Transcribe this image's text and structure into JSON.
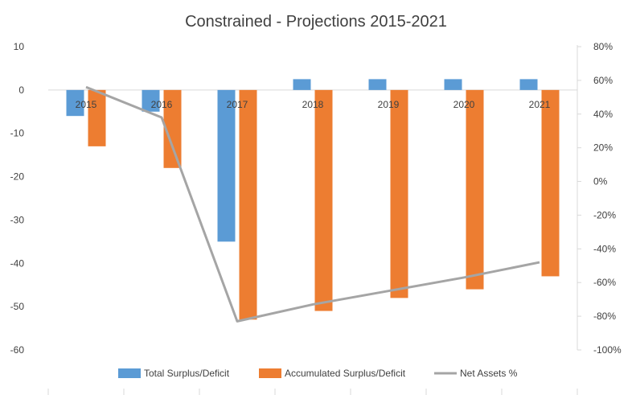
{
  "chart_data": {
    "type": "bar",
    "title": "Constrained - Projections 2015-2021",
    "categories": [
      "2015",
      "2016",
      "2017",
      "2018",
      "2019",
      "2020",
      "2021"
    ],
    "series": [
      {
        "name": "Total Surplus/Deficit",
        "kind": "bar",
        "axis": "left",
        "color": "#5B9BD5",
        "values": [
          -6,
          -5,
          -35,
          2.5,
          2.5,
          2.5,
          2.5
        ]
      },
      {
        "name": "Accumulated Surplus/Deficit",
        "kind": "bar",
        "axis": "left",
        "color": "#ED7D31",
        "values": [
          -13,
          -18,
          -53,
          -51,
          -48,
          -46,
          -43
        ]
      },
      {
        "name": "Net Assets %",
        "kind": "line",
        "axis": "right",
        "color": "#A5A5A5",
        "values": [
          0.56,
          0.38,
          -0.83,
          -0.73,
          -0.65,
          -0.57,
          -0.48
        ]
      }
    ],
    "y_left": {
      "min": -60,
      "max": 10,
      "ticks": [
        "10",
        "0",
        "-10",
        "-20",
        "-30",
        "-40",
        "-50",
        "-60"
      ]
    },
    "y_right": {
      "min": -1.0,
      "max": 0.8,
      "ticks": [
        "80%",
        "60%",
        "40%",
        "20%",
        "0%",
        "-20%",
        "-40%",
        "-60%",
        "-80%",
        "-100%"
      ]
    },
    "grid": false,
    "legend_position": "bottom"
  }
}
